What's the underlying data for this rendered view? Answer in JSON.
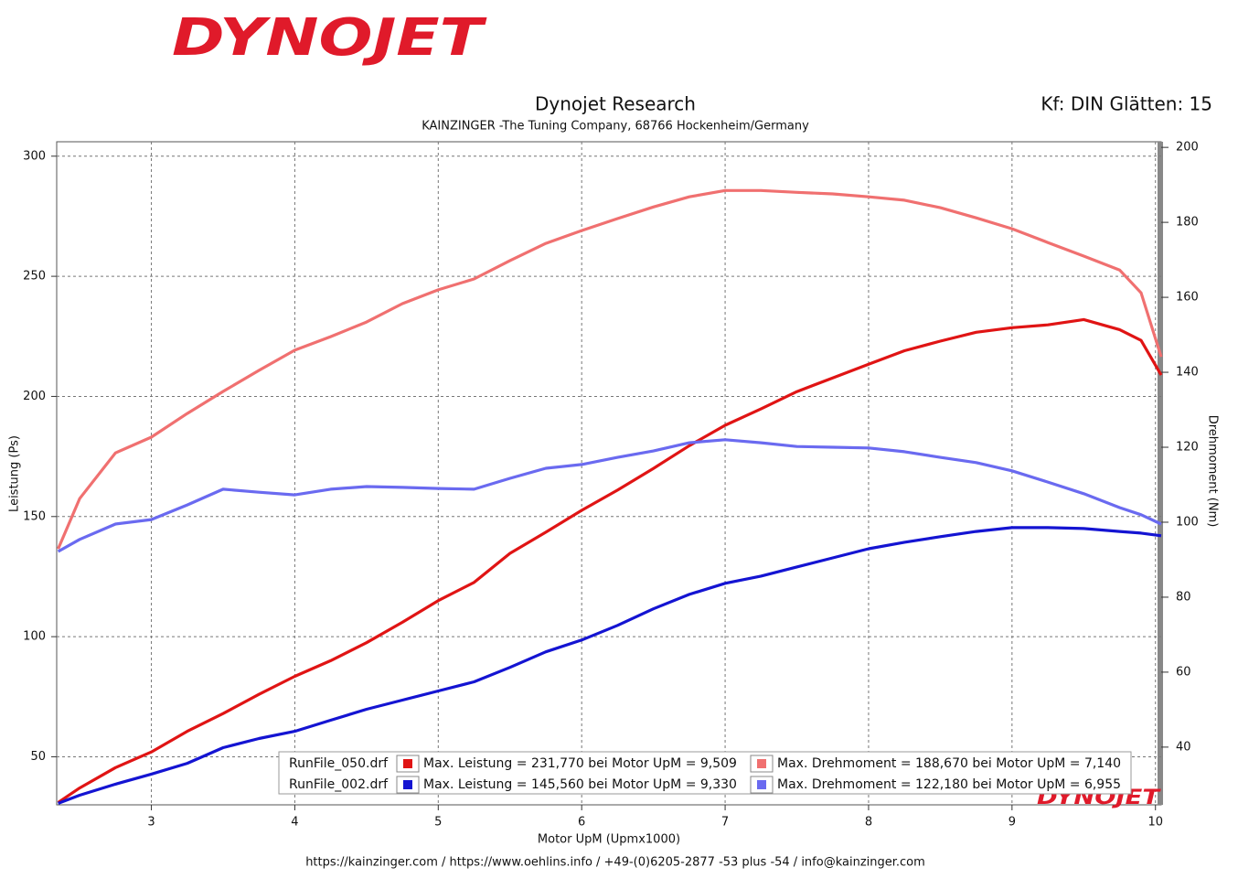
{
  "logo": "DYNOJET",
  "header": {
    "title": "Dynojet Research",
    "subtitle": "KAINZINGER -The Tuning Company, 68766 Hockenheim/Germany",
    "settings": "Kf: DIN Glätten: 15"
  },
  "footer": "https://kainzinger.com  /  https://www.oehlins.info  /  +49-(0)6205-2877 -53 plus -54  /  info@kainzinger.com",
  "chart_data": {
    "type": "line",
    "x_label": "Motor UpM (Upmx1000)",
    "y_label": "Leistung (Ps)",
    "y2_label": "Drehmoment (Nm)",
    "xlim": [
      2.34,
      10.04
    ],
    "ylim": [
      30,
      306
    ],
    "y2lim": [
      24.6,
      201.5
    ],
    "xticks": [
      3,
      4,
      5,
      6,
      7,
      8,
      9,
      10
    ],
    "yticks": [
      50,
      100,
      150,
      200,
      250,
      300
    ],
    "y2ticks": [
      40,
      60,
      80,
      100,
      120,
      140,
      160,
      180,
      200
    ],
    "grid": true,
    "runs": [
      "RunFile_050.drf",
      "RunFile_002.drf"
    ],
    "x": [
      2.35,
      2.5,
      2.75,
      3,
      3.25,
      3.5,
      3.75,
      4,
      4.25,
      4.5,
      4.75,
      5,
      5.25,
      5.5,
      5.75,
      6,
      6.25,
      6.5,
      6.75,
      7,
      7.25,
      7.5,
      7.75,
      8,
      8.25,
      8.5,
      8.75,
      9,
      9.25,
      9.5,
      9.75,
      9.9,
      10.04
    ],
    "series": [
      {
        "name": "Max. Leistung = 231,770 bei Motor UpM = 9,509",
        "run": 0,
        "color": "#e01414",
        "axis": "y",
        "values": [
          31,
          37,
          45.5,
          52,
          60.6,
          68,
          76,
          83.5,
          90,
          97.5,
          106,
          115,
          122.6,
          134.7,
          143.5,
          152.6,
          161,
          170,
          179.5,
          188,
          194.8,
          202,
          207.7,
          213.4,
          219,
          223,
          226.7,
          228.6,
          229.8,
          232,
          227.8,
          223.3,
          208.9
        ]
      },
      {
        "name": "Max. Drehmoment = 188,670 bei Motor UpM = 7,140",
        "run": 0,
        "color": "#f07070",
        "axis": "y2",
        "values": [
          92.9,
          106.3,
          118.5,
          122.7,
          129,
          134.9,
          140.5,
          145.9,
          149.5,
          153.4,
          158.3,
          162,
          164.9,
          169.8,
          174.4,
          177.8,
          181,
          184.1,
          186.8,
          188.5,
          188.5,
          188,
          187.6,
          186.8,
          185.9,
          183.9,
          181.2,
          178.3,
          174.6,
          171,
          167.3,
          161.2,
          144.1
        ]
      },
      {
        "name": "Max. Leistung = 145,560 bei Motor UpM = 9,330",
        "run": 1,
        "color": "#1414d2",
        "axis": "y",
        "values": [
          30.6,
          34,
          38.6,
          42.8,
          47.3,
          53.8,
          57.6,
          60.6,
          65.2,
          69.8,
          73.6,
          77.4,
          81.2,
          87.2,
          93.7,
          98.6,
          104.7,
          111.6,
          117.6,
          122.2,
          125.2,
          129,
          132.8,
          136.6,
          139.3,
          141.6,
          143.8,
          145.4,
          145.4,
          145,
          143.8,
          143.1,
          142
        ]
      },
      {
        "name": "Max. Drehmoment = 122,180 bei Motor UpM = 6,955",
        "run": 1,
        "color": "#6a6af0",
        "axis": "y2",
        "values": [
          92.2,
          95.4,
          99.5,
          100.7,
          104.6,
          108.8,
          108,
          107.3,
          108.8,
          109.5,
          109.3,
          109,
          108.8,
          111.7,
          114.4,
          115.4,
          117.3,
          119,
          121.2,
          122,
          121.2,
          120.2,
          120,
          119.8,
          118.8,
          117.3,
          115.9,
          113.7,
          110.7,
          107.6,
          103.9,
          102,
          99.5
        ]
      }
    ]
  }
}
